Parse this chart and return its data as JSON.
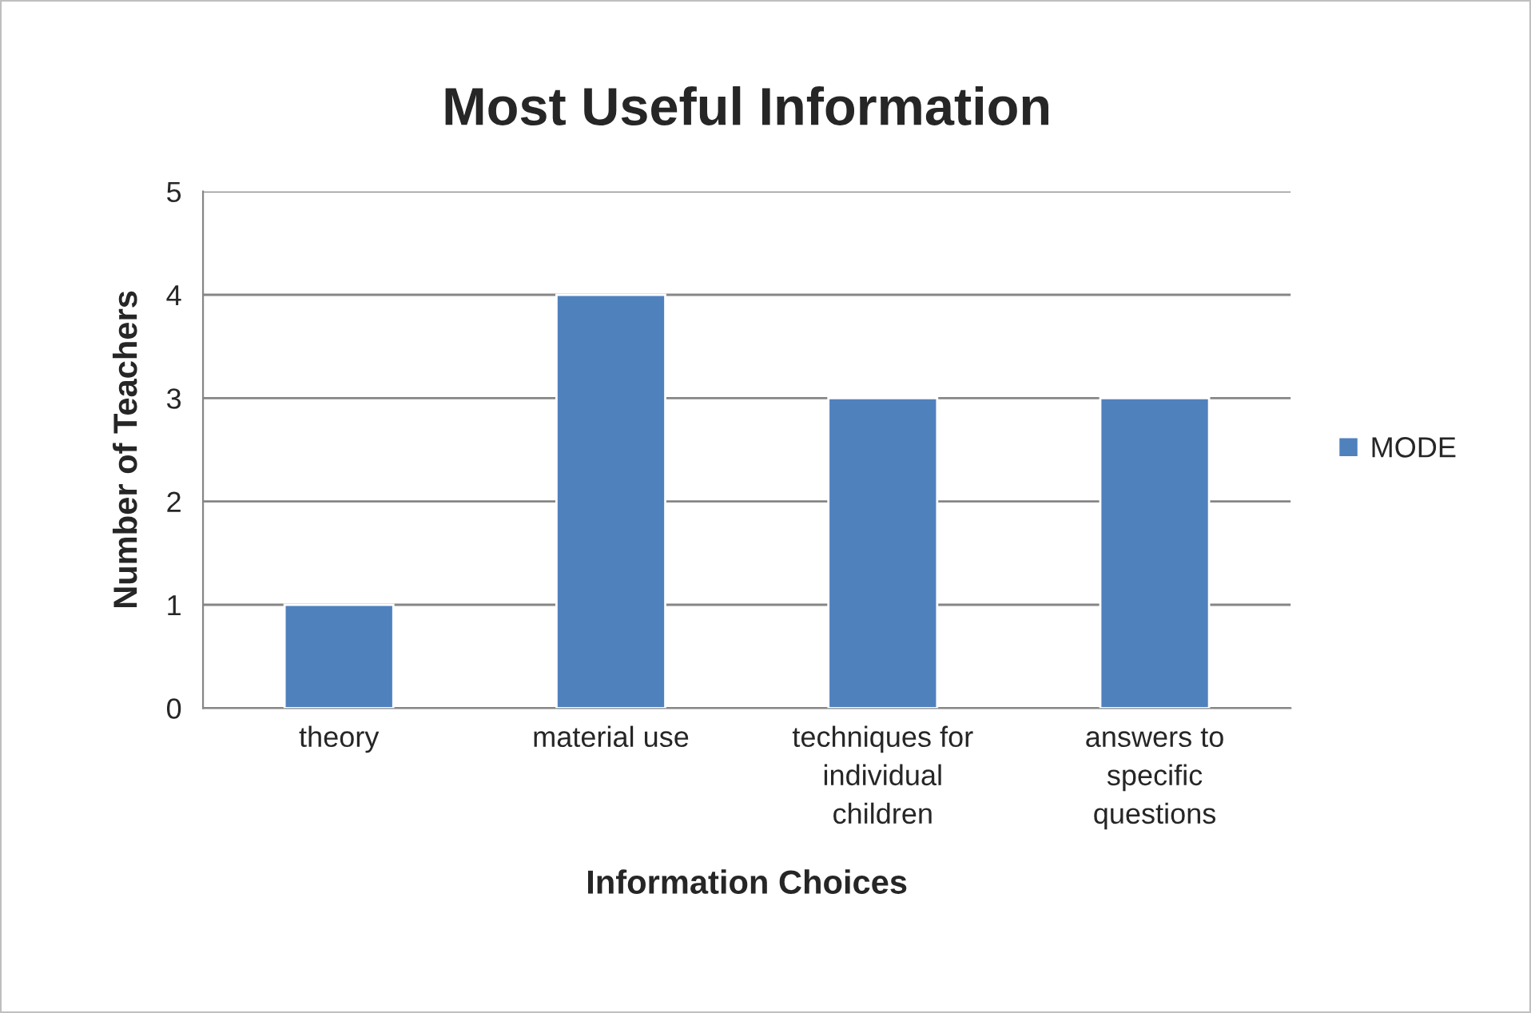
{
  "chart_data": {
    "type": "bar",
    "title": "Most Useful Information",
    "xlabel": "Information Choices",
    "ylabel": "Number of Teachers",
    "categories": [
      "theory",
      "material use",
      "techniques for\nindividual\nchildren",
      "answers to\nspecific\nquestions"
    ],
    "series": [
      {
        "name": "MODE",
        "color": "#4f81bd",
        "values": [
          1,
          4,
          3,
          3
        ]
      }
    ],
    "ylim": [
      0,
      5
    ],
    "yticks": [
      0,
      1,
      2,
      3,
      4,
      5
    ],
    "grid": "y",
    "legend": "right"
  }
}
